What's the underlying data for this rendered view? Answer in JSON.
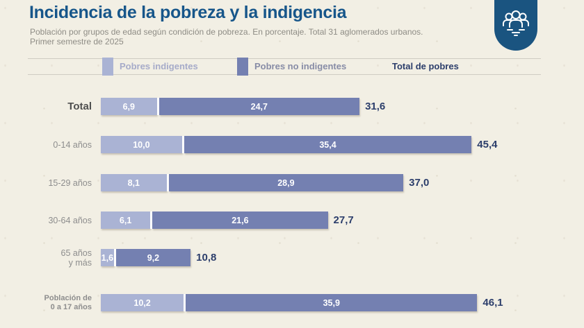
{
  "header": {
    "title": "Incidencia de la pobreza y la indigencia",
    "subtitle_line1": "Población por grupos de edad según condición de pobreza. En porcentaje. Total 31 aglomerados urbanos.",
    "subtitle_line2": "Primer semestre de 2025"
  },
  "badge": {
    "icon": "people-group-icon",
    "background_color": "#1a5480",
    "icon_color": "#ffffff"
  },
  "legend": {
    "indigentes_label": "Pobres indigentes",
    "no_indigentes_label": "Pobres no indigentes",
    "total_label": "Total de pobres",
    "indigentes_text_color": "#a6abc9",
    "no_indigentes_text_color": "#878ca6",
    "total_text_color": "#2c3e6b"
  },
  "colors": {
    "background": "#f2efe4",
    "title_blue": "#17568a",
    "light_segment": "#aab3d4",
    "dark_segment": "#7480b1",
    "total_value_text": "#2c3e6b"
  },
  "chart_data": {
    "type": "bar",
    "orientation": "horizontal",
    "stacked": true,
    "unit": "%",
    "decimal_separator": ",",
    "grid": false,
    "x_max": 56,
    "categories": [
      "Total",
      "0-14 años",
      "15-29 años",
      "30-64 años",
      "65 años y más",
      "Población de 0 a 17 años"
    ],
    "category_label_lines": [
      [
        "Total"
      ],
      [
        "0-14 años"
      ],
      [
        "15-29 años"
      ],
      [
        "30-64 años"
      ],
      [
        "65 años",
        "y más"
      ],
      [
        "Población de",
        "0 a 17 años"
      ]
    ],
    "series": [
      {
        "name": "Pobres indigentes",
        "color": "#aab3d4",
        "values": [
          6.9,
          10.0,
          8.1,
          6.1,
          1.6,
          10.2
        ]
      },
      {
        "name": "Pobres no indigentes",
        "color": "#7480b1",
        "values": [
          24.7,
          35.4,
          28.9,
          21.6,
          9.2,
          35.9
        ]
      }
    ],
    "totals": {
      "name": "Total de pobres",
      "values": [
        31.6,
        45.4,
        37.0,
        27.7,
        10.8,
        46.1
      ]
    },
    "value_labels_display": [
      [
        "6,9",
        "24,7",
        "31,6"
      ],
      [
        "10,0",
        "35,4",
        "45,4"
      ],
      [
        "8,1",
        "28,9",
        "37,0"
      ],
      [
        "6,1",
        "21,6",
        "27,7"
      ],
      [
        "1,6",
        "9,2",
        "10,8"
      ],
      [
        "10,2",
        "35,9",
        "46,1"
      ]
    ]
  }
}
